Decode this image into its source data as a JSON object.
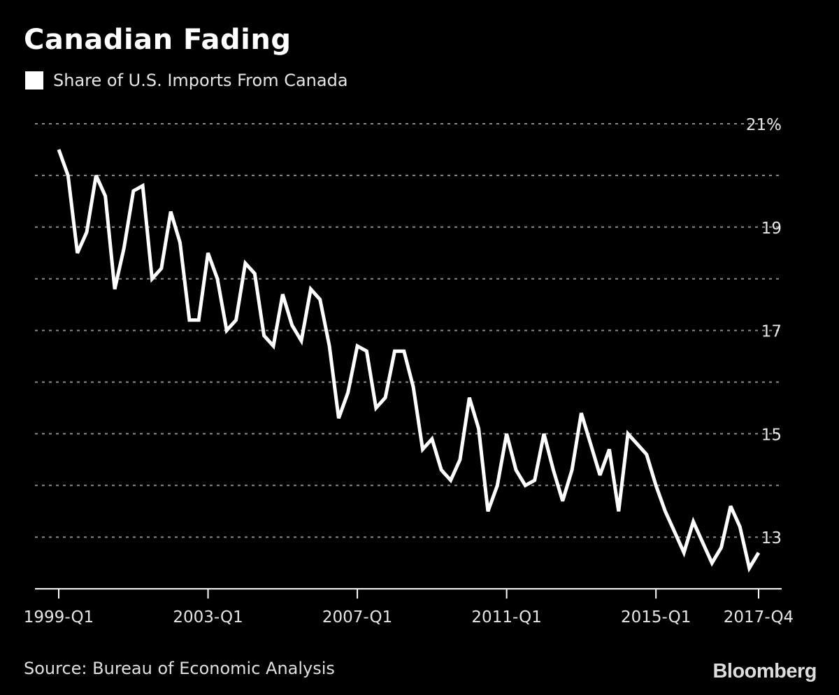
{
  "title": "Canadian Fading",
  "source": "Source: Bureau of Economic Analysis",
  "logo": "Bloomberg",
  "colors": {
    "background": "#000000",
    "line": "#ffffff",
    "grid": "#8a8a8a"
  },
  "chart_data": {
    "type": "line",
    "title": "Canadian Fading",
    "xlabel": "",
    "ylabel": "",
    "ylim": [
      12,
      21
    ],
    "grid": true,
    "legend": "top-left",
    "y_ticks": [
      13,
      14,
      15,
      16,
      17,
      18,
      19,
      20,
      21
    ],
    "y_tick_labels": [
      {
        "value": 21,
        "label": "21%"
      },
      {
        "value": 19,
        "label": "19"
      },
      {
        "value": 17,
        "label": "17"
      },
      {
        "value": 15,
        "label": "15"
      },
      {
        "value": 13,
        "label": "13"
      }
    ],
    "x_start": "1999-Q1",
    "x_end": "2017-Q4",
    "x_tick_labels": [
      {
        "index": 0,
        "label": "1999-Q1"
      },
      {
        "index": 16,
        "label": "2003-Q1"
      },
      {
        "index": 32,
        "label": "2007-Q1"
      },
      {
        "index": 48,
        "label": "2011-Q1"
      },
      {
        "index": 64,
        "label": "2015-Q1"
      },
      {
        "index": 75,
        "label": "2017-Q4"
      }
    ],
    "series": [
      {
        "name": "Share of U.S. Imports From Canada",
        "values": [
          20.5,
          20.0,
          18.5,
          18.9,
          20.0,
          19.6,
          17.8,
          18.6,
          19.7,
          19.8,
          18.0,
          18.2,
          19.3,
          18.7,
          17.2,
          17.2,
          18.5,
          18.0,
          17.0,
          17.2,
          18.3,
          18.1,
          16.9,
          16.7,
          17.7,
          17.1,
          16.8,
          17.8,
          17.6,
          16.7,
          15.3,
          15.8,
          16.7,
          16.6,
          15.5,
          15.7,
          16.6,
          16.6,
          15.9,
          14.7,
          14.9,
          14.3,
          14.1,
          14.5,
          15.7,
          15.1,
          13.5,
          14.0,
          15.0,
          14.3,
          14.0,
          14.1,
          15.0,
          14.3,
          13.7,
          14.3,
          15.4,
          14.8,
          14.2,
          14.7,
          13.5,
          15.0,
          14.8,
          14.6,
          14.0,
          13.5,
          13.1,
          12.7,
          13.3,
          12.9,
          12.5,
          12.8,
          13.6,
          13.2,
          12.4,
          12.7
        ]
      }
    ]
  }
}
